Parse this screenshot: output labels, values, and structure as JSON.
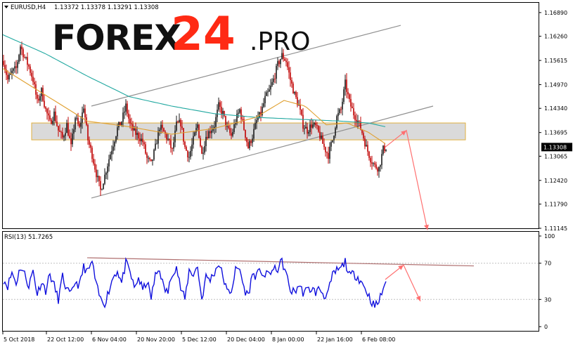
{
  "header": {
    "symbol": "EURUSD,H4",
    "ohlc": "1.13372 1.13378 1.13291 1.13308"
  },
  "logo": {
    "part1": "FOREX",
    "part2": "24",
    "part3": ".PRO"
  },
  "colors": {
    "bull_candle": "#1a1a1a",
    "bear_candle": "#c00000",
    "ma_fast": "#e0a030",
    "ma_slow": "#20a8a0",
    "channel": "#909090",
    "zone_fill": "#d4d4d4",
    "zone_border": "#e0b040",
    "forecast_arrow": "#ff7070",
    "rsi_line": "#1010dd",
    "rsi_trendline": "#b07070",
    "price_tag_bg": "#000000",
    "price_tag_text": "#ffffff"
  },
  "chart_data": [
    {
      "type": "candlestick",
      "title": "EURUSD,H4",
      "ylim": [
        1.11145,
        1.1715
      ],
      "y_ticks": [
        "1.16890",
        "1.16260",
        "1.15615",
        "1.14970",
        "1.14340",
        "1.13695",
        "1.13065",
        "1.12420",
        "1.11790",
        "1.11145"
      ],
      "y_tick_values": [
        1.1689,
        1.1626,
        1.15615,
        1.1497,
        1.1434,
        1.13695,
        1.13065,
        1.1242,
        1.1179,
        1.11145
      ],
      "last_price_label": "1.13308",
      "last_price": 1.13308,
      "x_labels": [
        "5 Oct 2018",
        "22 Oct 12:00",
        "6 Nov 04:00",
        "20 Nov 20:00",
        "5 Dec 12:00",
        "20 Dec 04:00",
        "8 Jan 00:00",
        "22 Jan 16:00",
        "6 Feb 08:00"
      ],
      "close_path": [
        [
          0,
          1.156
        ],
        [
          3,
          1.151
        ],
        [
          6,
          1.153
        ],
        [
          9,
          1.154
        ],
        [
          12,
          1.16
        ],
        [
          15,
          1.157
        ],
        [
          18,
          1.1545
        ],
        [
          21,
          1.151
        ],
        [
          24,
          1.145
        ],
        [
          27,
          1.148
        ],
        [
          30,
          1.143
        ],
        [
          33,
          1.1395
        ],
        [
          36,
          1.142
        ],
        [
          39,
          1.1375
        ],
        [
          42,
          1.1355
        ],
        [
          45,
          1.139
        ],
        [
          48,
          1.133
        ],
        [
          51,
          1.141
        ],
        [
          54,
          1.138
        ],
        [
          57,
          1.144
        ],
        [
          60,
          1.135
        ],
        [
          63,
          1.131
        ],
        [
          66,
          1.126
        ],
        [
          69,
          1.1215
        ],
        [
          72,
          1.1255
        ],
        [
          75,
          1.13
        ],
        [
          78,
          1.134
        ],
        [
          81,
          1.138
        ],
        [
          84,
          1.14
        ],
        [
          87,
          1.144
        ],
        [
          90,
          1.139
        ],
        [
          93,
          1.137
        ],
        [
          96,
          1.136
        ],
        [
          99,
          1.1345
        ],
        [
          102,
          1.13
        ],
        [
          105,
          1.1285
        ],
        [
          108,
          1.133
        ],
        [
          111,
          1.1385
        ],
        [
          114,
          1.137
        ],
        [
          117,
          1.135
        ],
        [
          120,
          1.132
        ],
        [
          123,
          1.139
        ],
        [
          126,
          1.1395
        ],
        [
          129,
          1.133
        ],
        [
          132,
          1.1305
        ],
        [
          135,
          1.135
        ],
        [
          138,
          1.139
        ],
        [
          141,
          1.131
        ],
        [
          144,
          1.136
        ],
        [
          147,
          1.1375
        ],
        [
          150,
          1.139
        ],
        [
          153,
          1.144
        ],
        [
          156,
          1.142
        ],
        [
          159,
          1.138
        ],
        [
          162,
          1.136
        ],
        [
          165,
          1.14
        ],
        [
          168,
          1.143
        ],
        [
          171,
          1.138
        ],
        [
          174,
          1.133
        ],
        [
          177,
          1.136
        ],
        [
          180,
          1.14
        ],
        [
          183,
          1.142
        ],
        [
          186,
          1.146
        ],
        [
          189,
          1.148
        ],
        [
          192,
          1.151
        ],
        [
          195,
          1.155
        ],
        [
          198,
          1.1575
        ],
        [
          201,
          1.156
        ],
        [
          204,
          1.151
        ],
        [
          207,
          1.147
        ],
        [
          210,
          1.144
        ],
        [
          213,
          1.139
        ],
        [
          216,
          1.1375
        ],
        [
          219,
          1.139
        ],
        [
          222,
          1.1385
        ],
        [
          225,
          1.136
        ],
        [
          228,
          1.133
        ],
        [
          231,
          1.131
        ],
        [
          234,
          1.135
        ],
        [
          237,
          1.141
        ],
        [
          240,
          1.143
        ],
        [
          243,
          1.15
        ],
        [
          246,
          1.145
        ],
        [
          249,
          1.142
        ],
        [
          252,
          1.14
        ],
        [
          255,
          1.137
        ],
        [
          258,
          1.133
        ],
        [
          261,
          1.13
        ],
        [
          264,
          1.128
        ],
        [
          267,
          1.1275
        ],
        [
          270,
          1.1325
        ],
        [
          272,
          1.1331
        ]
      ],
      "ma_fast_path": [
        [
          0,
          1.154
        ],
        [
          30,
          1.147
        ],
        [
          60,
          1.14
        ],
        [
          90,
          1.1385
        ],
        [
          120,
          1.1365
        ],
        [
          150,
          1.138
        ],
        [
          180,
          1.141
        ],
        [
          200,
          1.1455
        ],
        [
          215,
          1.144
        ],
        [
          230,
          1.139
        ],
        [
          245,
          1.1395
        ],
        [
          260,
          1.137
        ],
        [
          272,
          1.134
        ]
      ],
      "ma_slow_path": [
        [
          0,
          1.163
        ],
        [
          30,
          1.158
        ],
        [
          60,
          1.152
        ],
        [
          90,
          1.1465
        ],
        [
          120,
          1.144
        ],
        [
          150,
          1.142
        ],
        [
          180,
          1.141
        ],
        [
          210,
          1.1405
        ],
        [
          240,
          1.14
        ],
        [
          260,
          1.1395
        ],
        [
          272,
          1.1385
        ]
      ],
      "channel_upper": [
        [
          63,
          1.144
        ],
        [
          283,
          1.1655
        ]
      ],
      "channel_lower": [
        [
          63,
          1.1195
        ],
        [
          306,
          1.144
        ]
      ],
      "zone": [
        1.135,
        1.1395
      ],
      "forecast": [
        [
          272,
          1.1331
        ],
        [
          287,
          1.1375
        ],
        [
          302,
          1.111
        ]
      ]
    },
    {
      "type": "line",
      "title": "RSI(13) 51.7265",
      "ylim": [
        0,
        100
      ],
      "y_ticks": [
        "100",
        "70",
        "30",
        "0"
      ],
      "y_tick_values": [
        100,
        70,
        30,
        0
      ],
      "levels": [
        70,
        30
      ],
      "values_path": [
        [
          0,
          52
        ],
        [
          3,
          45
        ],
        [
          6,
          60
        ],
        [
          9,
          48
        ],
        [
          12,
          66
        ],
        [
          15,
          58
        ],
        [
          18,
          45
        ],
        [
          21,
          62
        ],
        [
          24,
          36
        ],
        [
          27,
          50
        ],
        [
          30,
          40
        ],
        [
          33,
          58
        ],
        [
          36,
          45
        ],
        [
          39,
          30
        ],
        [
          42,
          55
        ],
        [
          45,
          40
        ],
        [
          48,
          35
        ],
        [
          51,
          50
        ],
        [
          54,
          45
        ],
        [
          57,
          66
        ],
        [
          60,
          60
        ],
        [
          63,
          72
        ],
        [
          66,
          45
        ],
        [
          69,
          30
        ],
        [
          72,
          26
        ],
        [
          75,
          40
        ],
        [
          78,
          55
        ],
        [
          81,
          62
        ],
        [
          84,
          48
        ],
        [
          87,
          70
        ],
        [
          90,
          60
        ],
        [
          93,
          42
        ],
        [
          96,
          54
        ],
        [
          99,
          40
        ],
        [
          102,
          50
        ],
        [
          105,
          32
        ],
        [
          108,
          56
        ],
        [
          111,
          64
        ],
        [
          114,
          42
        ],
        [
          117,
          38
        ],
        [
          120,
          60
        ],
        [
          123,
          66
        ],
        [
          126,
          42
        ],
        [
          129,
          30
        ],
        [
          132,
          62
        ],
        [
          135,
          58
        ],
        [
          138,
          66
        ],
        [
          141,
          30
        ],
        [
          144,
          55
        ],
        [
          147,
          52
        ],
        [
          150,
          60
        ],
        [
          153,
          70
        ],
        [
          156,
          56
        ],
        [
          159,
          38
        ],
        [
          162,
          40
        ],
        [
          165,
          62
        ],
        [
          168,
          64
        ],
        [
          171,
          42
        ],
        [
          174,
          34
        ],
        [
          177,
          58
        ],
        [
          180,
          56
        ],
        [
          183,
          62
        ],
        [
          186,
          55
        ],
        [
          189,
          60
        ],
        [
          192,
          62
        ],
        [
          195,
          64
        ],
        [
          198,
          72
        ],
        [
          201,
          58
        ],
        [
          204,
          40
        ],
        [
          207,
          38
        ],
        [
          210,
          46
        ],
        [
          213,
          38
        ],
        [
          216,
          40
        ],
        [
          219,
          42
        ],
        [
          222,
          38
        ],
        [
          225,
          42
        ],
        [
          228,
          34
        ],
        [
          231,
          38
        ],
        [
          234,
          56
        ],
        [
          237,
          62
        ],
        [
          240,
          64
        ],
        [
          243,
          72
        ],
        [
          246,
          56
        ],
        [
          249,
          58
        ],
        [
          252,
          55
        ],
        [
          255,
          48
        ],
        [
          258,
          40
        ],
        [
          261,
          30
        ],
        [
          264,
          22
        ],
        [
          267,
          28
        ],
        [
          270,
          42
        ],
        [
          272,
          52
        ]
      ],
      "trendline": [
        [
          60,
          76
        ],
        [
          335,
          67
        ]
      ],
      "forecast": [
        [
          272,
          52
        ],
        [
          285,
          68
        ],
        [
          297,
          28
        ]
      ]
    }
  ]
}
